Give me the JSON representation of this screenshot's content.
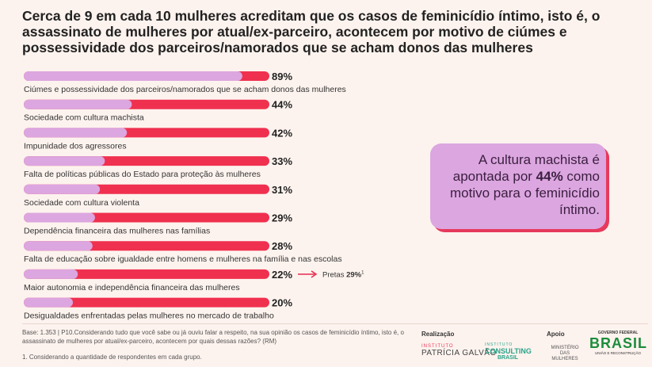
{
  "title": "Cerca de 9 em cada 10 mulheres acreditam que os casos de feminicídio íntimo, isto é, o assassinato de mulheres por atual/ex-parceiro, acontecem por motivo de ciúmes e possessividade dos parceiros/namorados que se acham donos das mulheres",
  "chart_data": {
    "type": "bar",
    "orientation": "horizontal",
    "categories": [
      "Ciúmes e possessividade dos parceiros/namorados que se acham donos das mulheres",
      "Sociedade com cultura machista",
      "Impunidade dos agressores",
      "Falta de políticas públicas do Estado para proteção às mulheres",
      "Sociedade com cultura violenta",
      "Dependência financeira das mulheres nas famílias",
      "Falta de educação sobre igualdade entre homens e mulheres na família e nas escolas",
      "Maior autonomia e independência financeira das mulheres",
      "Desigualdades enfrentadas pelas mulheres no mercado de trabalho"
    ],
    "values": [
      89,
      44,
      42,
      33,
      31,
      29,
      28,
      22,
      20
    ],
    "value_labels": [
      "89%",
      "44%",
      "42%",
      "33%",
      "31%",
      "29%",
      "28%",
      "22%",
      "20%"
    ],
    "xlim": [
      0,
      100
    ],
    "colors": {
      "value_bar": "#dca6e0",
      "track": "#f0304f"
    }
  },
  "annotation": {
    "label": "Pretas",
    "value": "29%",
    "superscript": "1",
    "category_index": 7
  },
  "callout": {
    "pre": "A cultura machista é apontada por ",
    "value": "44%",
    "post": " como motivo para o feminicídio íntimo."
  },
  "footer": {
    "base": "Base: 1.353 | P10.Considerando tudo que você sabe ou já ouviu falar a respeito, na sua opinião os casos de feminicídio íntimo, isto é, o assassinato de mulheres por atual/ex-parceiro, acontecem por quais dessas razões? (RM)",
    "note": "1. Considerando a quantidade de respondentes em cada grupo.",
    "realizacao_label": "Realização",
    "apoio_label": "Apoio",
    "logo1_top": "INSTITUTO",
    "logo1_bottom": "PATRÍCIA GALVÃO",
    "logo2_top": "INSTITUTO",
    "logo2_main": "CONSULTING",
    "logo2_sub": "BRASIL",
    "logo3": "MINISTÉRIO DAS MULHERES",
    "logo4_top": "GOVERNO FEDERAL",
    "logo4_main": "BRASIL",
    "logo4_sub": "UNIÃO E RECONSTRUÇÃO"
  }
}
